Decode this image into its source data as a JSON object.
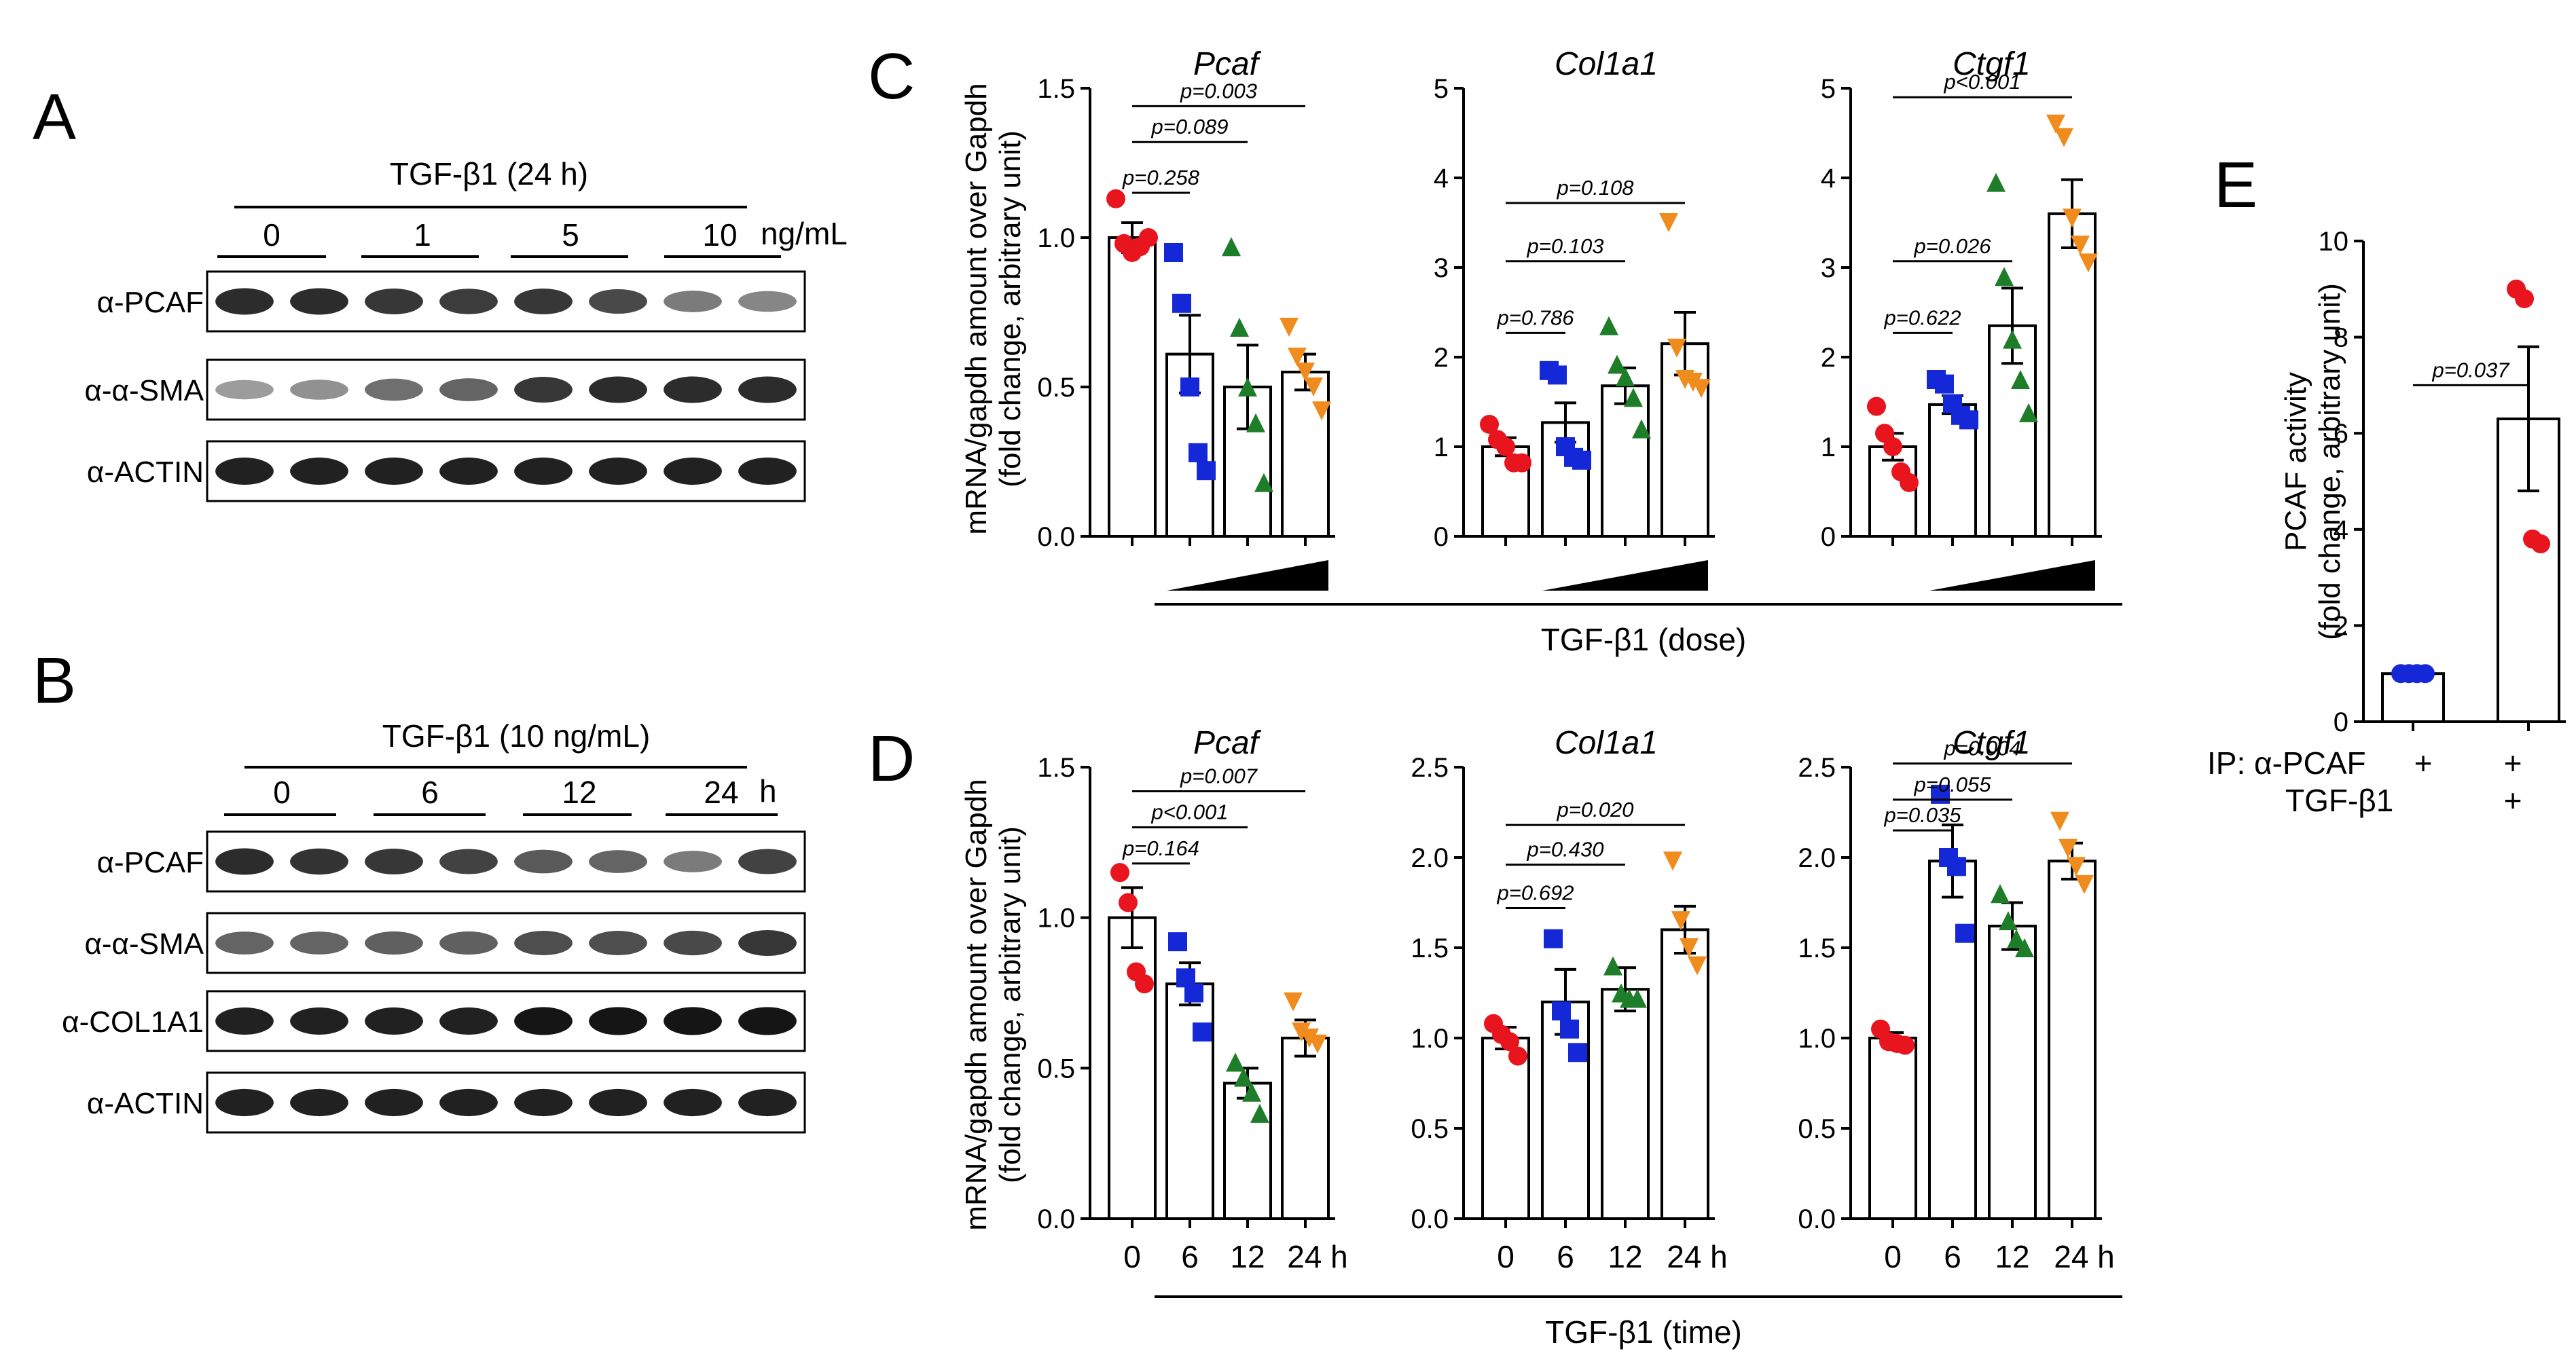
{
  "panel_letters": [
    "A",
    "B",
    "C",
    "D",
    "E"
  ],
  "colors": {
    "red": "#e8141e",
    "blue": "#1428d8",
    "green": "#1e7d28",
    "orange": "#f08c1e",
    "band": "#141414"
  },
  "blot_A": {
    "treatment": "TGF-β1 (24 h)",
    "doses": [
      "0",
      "1",
      "5",
      "10"
    ],
    "dose_unit": "ng/mL",
    "rows": [
      {
        "label": "α-PCAF",
        "intensity": [
          0.85,
          0.85,
          0.8,
          0.78,
          0.8,
          0.72,
          0.5,
          0.45
        ]
      },
      {
        "label": "α-α-SMA",
        "intensity": [
          0.35,
          0.4,
          0.55,
          0.6,
          0.8,
          0.85,
          0.85,
          0.85
        ]
      },
      {
        "label": "α-ACTIN",
        "intensity": [
          0.9,
          0.9,
          0.9,
          0.9,
          0.9,
          0.9,
          0.9,
          0.9
        ]
      }
    ]
  },
  "blot_B": {
    "treatment": "TGF-β1 (10 ng/mL)",
    "times": [
      "0",
      "6",
      "12",
      "24"
    ],
    "time_unit": "h",
    "rows": [
      {
        "label": "α-PCAF",
        "intensity": [
          0.85,
          0.82,
          0.8,
          0.75,
          0.65,
          0.6,
          0.5,
          0.75
        ]
      },
      {
        "label": "α-α-SMA",
        "intensity": [
          0.6,
          0.6,
          0.62,
          0.62,
          0.7,
          0.7,
          0.72,
          0.8
        ]
      },
      {
        "label": "α-COL1A1",
        "intensity": [
          0.9,
          0.9,
          0.9,
          0.9,
          0.95,
          0.95,
          0.95,
          0.95
        ]
      },
      {
        "label": "α-ACTIN",
        "intensity": [
          0.9,
          0.9,
          0.9,
          0.9,
          0.9,
          0.9,
          0.9,
          0.9
        ]
      }
    ]
  },
  "chart_data": [
    {
      "panel": "C",
      "type": "bar",
      "title": "Pcaf",
      "ylabel": "mRNA/gapdh amount over Gapdh\n(fold change, arbitrary unit)",
      "ylim": [
        0,
        1.5
      ],
      "yticks": [
        "0.0",
        "0.5",
        "1.0",
        "1.5"
      ],
      "categories": [],
      "x_axis_note": "TGF-β1 (dose)",
      "dose_wedge": true,
      "means": [
        1.0,
        0.61,
        0.5,
        0.55
      ],
      "sem": [
        0.05,
        0.13,
        0.14,
        0.06
      ],
      "points": [
        [
          1.13,
          0.98,
          0.95,
          0.97,
          1.0
        ],
        [
          0.95,
          0.78,
          0.5,
          0.28,
          0.22
        ],
        [
          0.97,
          0.7,
          0.5,
          0.38,
          0.18
        ],
        [
          0.7,
          0.6,
          0.55,
          0.5,
          0.42
        ]
      ],
      "pvalues": [
        {
          "text": "p=0.258",
          "from": 0,
          "to": 1,
          "y": 1.15
        },
        {
          "text": "p=0.089",
          "from": 0,
          "to": 2,
          "y": 1.32
        },
        {
          "text": "p=0.003",
          "from": 0,
          "to": 3,
          "y": 1.44
        }
      ]
    },
    {
      "panel": "C",
      "type": "bar",
      "title": "Col1a1",
      "ylim": [
        0,
        5
      ],
      "yticks": [
        "0",
        "1",
        "2",
        "3",
        "4",
        "5"
      ],
      "categories": [],
      "dose_wedge": true,
      "means": [
        1.0,
        1.27,
        1.68,
        2.15
      ],
      "sem": [
        0.1,
        0.22,
        0.2,
        0.35
      ],
      "points": [
        [
          1.25,
          1.08,
          1.0,
          0.82,
          0.82
        ],
        [
          1.85,
          1.8,
          1.0,
          0.88,
          0.85
        ],
        [
          2.35,
          1.92,
          1.78,
          1.55,
          1.2
        ],
        [
          3.5,
          2.1,
          1.75,
          1.72,
          1.65
        ]
      ],
      "pvalues": [
        {
          "text": "p=0.786",
          "from": 0,
          "to": 1,
          "y": 2.27
        },
        {
          "text": "p=0.103",
          "from": 0,
          "to": 2,
          "y": 3.07
        },
        {
          "text": "p=0.108",
          "from": 0,
          "to": 3,
          "y": 3.72
        }
      ]
    },
    {
      "panel": "C",
      "type": "bar",
      "title": "Ctgf1",
      "ylim": [
        0,
        5
      ],
      "yticks": [
        "0",
        "1",
        "2",
        "3",
        "4",
        "5"
      ],
      "categories": [],
      "dose_wedge": true,
      "means": [
        1.0,
        1.47,
        2.35,
        3.6
      ],
      "sem": [
        0.15,
        0.1,
        0.42,
        0.38
      ],
      "points": [
        [
          1.45,
          1.15,
          1.0,
          0.72,
          0.6
        ],
        [
          1.75,
          1.7,
          1.48,
          1.35,
          1.3
        ],
        [
          3.95,
          2.9,
          2.2,
          1.75,
          1.38
        ],
        [
          4.6,
          4.45,
          3.55,
          3.25,
          3.05
        ]
      ],
      "pvalues": [
        {
          "text": "p=0.622",
          "from": 0,
          "to": 1,
          "y": 2.27
        },
        {
          "text": "p=0.026",
          "from": 0,
          "to": 2,
          "y": 3.07
        },
        {
          "text": "p<0.001",
          "from": 0,
          "to": 3,
          "y": 4.9
        }
      ]
    },
    {
      "panel": "D",
      "type": "bar",
      "title": "Pcaf",
      "ylabel": "mRNA/gapdh amount over Gapdh\n(fold change, arbitrary unit)",
      "ylim": [
        0,
        1.5
      ],
      "yticks": [
        "0.0",
        "0.5",
        "1.0",
        "1.5"
      ],
      "categories": [
        "0",
        "6",
        "12",
        "24 h"
      ],
      "x_axis_note": "TGF-β1 (time)",
      "means": [
        1.0,
        0.78,
        0.45,
        0.6
      ],
      "sem": [
        0.1,
        0.07,
        0.05,
        0.06
      ],
      "points": [
        [
          1.15,
          1.05,
          0.82,
          0.78
        ],
        [
          0.92,
          0.8,
          0.75,
          0.62
        ],
        [
          0.52,
          0.47,
          0.42,
          0.35
        ],
        [
          0.72,
          0.62,
          0.6,
          0.58
        ]
      ],
      "pvalues": [
        {
          "text": "p=0.164",
          "from": 0,
          "to": 1,
          "y": 1.18
        },
        {
          "text": "p<0.001",
          "from": 0,
          "to": 2,
          "y": 1.3
        },
        {
          "text": "p=0.007",
          "from": 0,
          "to": 3,
          "y": 1.42
        }
      ]
    },
    {
      "panel": "D",
      "type": "bar",
      "title": "Col1a1",
      "ylim": [
        0,
        2.5
      ],
      "yticks": [
        "0.0",
        "0.5",
        "1.0",
        "1.5",
        "2.0",
        "2.5"
      ],
      "categories": [
        "0",
        "6",
        "12",
        "24 h"
      ],
      "means": [
        1.0,
        1.2,
        1.27,
        1.6
      ],
      "sem": [
        0.06,
        0.18,
        0.12,
        0.13
      ],
      "points": [
        [
          1.08,
          1.02,
          0.98,
          0.9
        ],
        [
          1.55,
          1.15,
          1.05,
          0.92
        ],
        [
          1.4,
          1.25,
          1.22,
          1.22
        ],
        [
          1.98,
          1.65,
          1.5,
          1.4
        ]
      ],
      "pvalues": [
        {
          "text": "p=0.692",
          "from": 0,
          "to": 1,
          "y": 1.72
        },
        {
          "text": "p=0.430",
          "from": 0,
          "to": 2,
          "y": 1.96
        },
        {
          "text": "p=0.020",
          "from": 0,
          "to": 3,
          "y": 2.18
        }
      ]
    },
    {
      "panel": "D",
      "type": "bar",
      "title": "Ctgf1",
      "ylim": [
        0,
        2.5
      ],
      "yticks": [
        "0.0",
        "0.5",
        "1.0",
        "1.5",
        "2.0",
        "2.5"
      ],
      "categories": [
        "0",
        "6",
        "12",
        "24 h"
      ],
      "means": [
        1.0,
        1.98,
        1.62,
        1.98
      ],
      "sem": [
        0.03,
        0.2,
        0.13,
        0.1
      ],
      "points": [
        [
          1.05,
          0.98,
          0.97,
          0.96
        ],
        [
          2.35,
          2.0,
          1.95,
          1.58
        ],
        [
          1.8,
          1.65,
          1.55,
          1.5
        ],
        [
          2.2,
          2.05,
          1.95,
          1.85
        ]
      ],
      "pvalues": [
        {
          "text": "p=0.035",
          "from": 0,
          "to": 1,
          "y": 2.15
        },
        {
          "text": "p=0.055",
          "from": 0,
          "to": 2,
          "y": 2.32
        },
        {
          "text": "p=0.004",
          "from": 0,
          "to": 3,
          "y": 2.52
        }
      ]
    },
    {
      "panel": "E",
      "type": "bar",
      "ylabel": "PCAF activity\n(fold change, arbitrary unit)",
      "ylim": [
        0,
        10
      ],
      "yticks": [
        "0",
        "2",
        "4",
        "6",
        "8",
        "10"
      ],
      "means": [
        1.0,
        6.3
      ],
      "sem": [
        0.0,
        1.5
      ],
      "points": [
        [
          1.0,
          1.0,
          1.0,
          1.0
        ],
        [
          9.0,
          8.8,
          3.8,
          3.7
        ]
      ],
      "pvalues": [
        {
          "text": "p=0.037",
          "from": 0,
          "to": 1,
          "y": 7.0
        }
      ],
      "row_labels": [
        "IP: α-PCAF",
        "TGF-β1"
      ],
      "row_values": [
        [
          "+",
          "+"
        ],
        [
          "",
          "+"
        ]
      ]
    }
  ]
}
